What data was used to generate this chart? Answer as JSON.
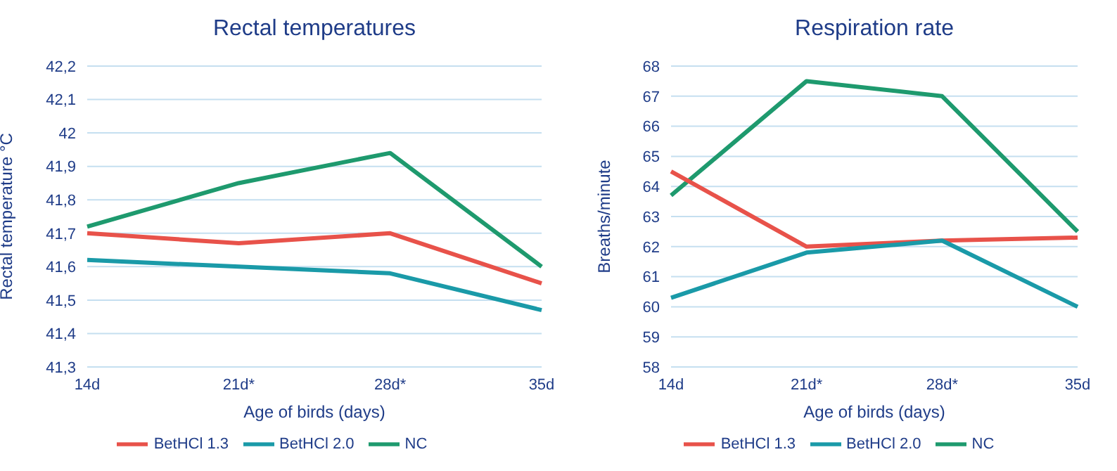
{
  "chart_data": [
    {
      "type": "line",
      "title": "Rectal temperatures",
      "xlabel": "Age of birds (days)",
      "ylabel": "Rectal temperature °C",
      "categories": [
        "14d",
        "21d*",
        "28d*",
        "35d"
      ],
      "series": [
        {
          "name": "NC",
          "color": "#1e9a6e",
          "values": [
            41.72,
            41.85,
            41.94,
            41.6
          ]
        },
        {
          "name": "BetHCl 1.3",
          "color": "#e8524a",
          "values": [
            41.7,
            41.67,
            41.7,
            41.55
          ]
        },
        {
          "name": "BetHCl 2.0",
          "color": "#1a9aa8",
          "values": [
            41.62,
            41.6,
            41.58,
            41.47
          ]
        }
      ],
      "ylim": [
        41.3,
        42.2
      ],
      "yticks": [
        {
          "value": 41.3,
          "label": "41,3"
        },
        {
          "value": 41.4,
          "label": "41,4"
        },
        {
          "value": 41.5,
          "label": "41,5"
        },
        {
          "value": 41.6,
          "label": "41,6"
        },
        {
          "value": 41.7,
          "label": "41,7"
        },
        {
          "value": 41.8,
          "label": "41,8"
        },
        {
          "value": 41.9,
          "label": "41,9"
        },
        42,
        {
          "value": 42.1,
          "label": "42,1"
        },
        {
          "value": 42.2,
          "label": "42,2"
        }
      ],
      "grid": "y",
      "legend": "bottom",
      "marker": "none",
      "line_style": "solid"
    },
    {
      "type": "line",
      "title": "Respiration rate",
      "xlabel": "Age of birds (days)",
      "ylabel": "Breaths/minute",
      "categories": [
        "14d",
        "21d*",
        "28d*",
        "35d"
      ],
      "series": [
        {
          "name": "NC",
          "color": "#1e9a6e",
          "values": [
            63.7,
            67.5,
            67,
            62.5
          ]
        },
        {
          "name": "BetHCl 1.3",
          "color": "#e8524a",
          "values": [
            64.5,
            62,
            62.2,
            62.3
          ]
        },
        {
          "name": "BetHCl 2.0",
          "color": "#1a9aa8",
          "values": [
            60.3,
            61.8,
            62.2,
            60
          ]
        }
      ],
      "ylim": [
        58,
        68
      ],
      "yticks": [
        58,
        59,
        60,
        61,
        62,
        63,
        64,
        65,
        66,
        67,
        68
      ],
      "grid": "y",
      "legend": "bottom",
      "marker": "none",
      "line_style": "solid"
    }
  ]
}
